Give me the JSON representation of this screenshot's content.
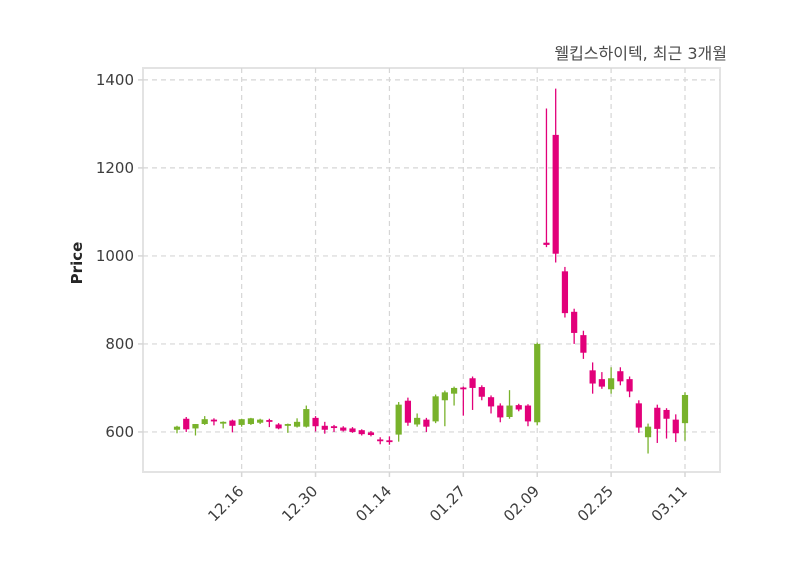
{
  "chart_data": {
    "type": "candlestick",
    "title": "웰킵스하이텍, 최근 3개월",
    "ylabel": "Price",
    "xlabel": "",
    "grid": "dashed",
    "legend": "none",
    "y_ticks": [
      600,
      800,
      1000,
      1200,
      1400
    ],
    "ylim": [
      509,
      1427
    ],
    "x_tick_labels": [
      "12.16",
      "12.30",
      "01.14",
      "01.27",
      "02.09",
      "02.25",
      "03.11"
    ],
    "x_tick_indices": [
      7,
      15,
      23,
      31,
      39,
      47,
      55
    ],
    "candles_format": [
      "open",
      "high",
      "low",
      "close"
    ],
    "candles": [
      [
        605,
        614,
        597,
        612
      ],
      [
        630,
        634,
        600,
        606
      ],
      [
        608,
        618,
        592,
        618
      ],
      [
        618,
        636,
        616,
        629
      ],
      [
        628,
        631,
        615,
        626
      ],
      [
        620,
        624,
        608,
        623
      ],
      [
        626,
        628,
        599,
        614
      ],
      [
        616,
        630,
        612,
        629
      ],
      [
        618,
        632,
        616,
        631
      ],
      [
        621,
        630,
        618,
        628
      ],
      [
        627,
        630,
        611,
        624
      ],
      [
        617,
        620,
        606,
        608
      ],
      [
        615,
        619,
        598,
        618
      ],
      [
        612,
        631,
        610,
        623
      ],
      [
        612,
        660,
        610,
        652
      ],
      [
        632,
        636,
        601,
        613
      ],
      [
        614,
        623,
        596,
        605
      ],
      [
        613,
        616,
        600,
        610
      ],
      [
        610,
        613,
        601,
        603
      ],
      [
        608,
        611,
        598,
        600
      ],
      [
        604,
        606,
        592,
        595
      ],
      [
        599,
        602,
        590,
        593
      ],
      [
        583,
        588,
        572,
        579
      ],
      [
        581,
        590,
        571,
        579
      ],
      [
        594,
        668,
        578,
        662
      ],
      [
        671,
        678,
        614,
        621
      ],
      [
        617,
        642,
        612,
        632
      ],
      [
        628,
        632,
        600,
        612
      ],
      [
        624,
        685,
        620,
        681
      ],
      [
        672,
        694,
        613,
        690
      ],
      [
        687,
        703,
        660,
        700
      ],
      [
        701,
        703,
        637,
        697
      ],
      [
        722,
        726,
        650,
        700
      ],
      [
        702,
        706,
        672,
        680
      ],
      [
        679,
        683,
        642,
        658
      ],
      [
        660,
        665,
        622,
        633
      ],
      [
        634,
        695,
        630,
        660
      ],
      [
        661,
        664,
        647,
        651
      ],
      [
        660,
        663,
        613,
        624
      ],
      [
        622,
        803,
        615,
        800
      ],
      [
        1030,
        1335,
        1020,
        1025
      ],
      [
        1275,
        1380,
        985,
        1005
      ],
      [
        965,
        975,
        860,
        870
      ],
      [
        873,
        880,
        800,
        825
      ],
      [
        820,
        830,
        766,
        780
      ],
      [
        740,
        758,
        687,
        710
      ],
      [
        720,
        736,
        698,
        703
      ],
      [
        697,
        747,
        687,
        722
      ],
      [
        738,
        747,
        706,
        715
      ],
      [
        720,
        726,
        679,
        692
      ],
      [
        665,
        672,
        598,
        610
      ],
      [
        588,
        619,
        551,
        612
      ],
      [
        655,
        662,
        575,
        607
      ],
      [
        650,
        654,
        585,
        630
      ],
      [
        628,
        640,
        577,
        597
      ],
      [
        620,
        690,
        580,
        684
      ]
    ],
    "colors": {
      "up": "#78b22b",
      "down": "#e2007a",
      "grid": "#d6d6d6",
      "plot_border": "#e3e3e3",
      "tick_text": "#3d3d3d",
      "title_text": "#4a4a4a",
      "background": "#ffffff"
    }
  }
}
